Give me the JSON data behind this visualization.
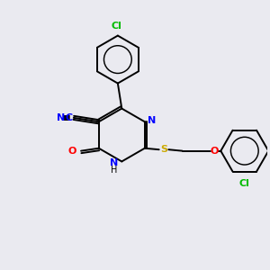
{
  "background_color": "#eaeaf0",
  "bond_color": "#000000",
  "atom_colors": {
    "N": "#0000ff",
    "O": "#ff0000",
    "S": "#ccaa00",
    "Cl": "#00bb00",
    "CN_blue": "#0000ff"
  },
  "bg": "#eaeaf0"
}
